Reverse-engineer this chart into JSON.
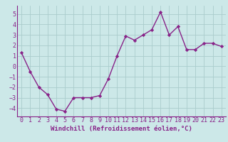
{
  "x": [
    0,
    1,
    2,
    3,
    4,
    5,
    6,
    7,
    8,
    9,
    10,
    11,
    12,
    13,
    14,
    15,
    16,
    17,
    18,
    19,
    20,
    21,
    22,
    23
  ],
  "y": [
    1.3,
    -0.5,
    -2.0,
    -2.7,
    -4.1,
    -4.3,
    -3.0,
    -3.0,
    -3.0,
    -2.8,
    -1.2,
    1.0,
    2.9,
    2.5,
    3.0,
    3.5,
    5.2,
    3.0,
    3.8,
    1.6,
    1.6,
    2.2,
    2.2,
    1.9
  ],
  "line_color": "#882288",
  "marker": "D",
  "marker_size": 2.2,
  "line_width": 1.0,
  "bg_color": "#cce8e8",
  "grid_color": "#aacccc",
  "xlabel": "Windchill (Refroidissement éolien,°C)",
  "xlabel_fontsize": 6.5,
  "tick_fontsize": 6.0,
  "ylim": [
    -4.8,
    5.8
  ],
  "xlim": [
    -0.5,
    23.5
  ],
  "yticks": [
    -4,
    -3,
    -2,
    -1,
    0,
    1,
    2,
    3,
    4,
    5
  ],
  "xticks": [
    0,
    1,
    2,
    3,
    4,
    5,
    6,
    7,
    8,
    9,
    10,
    11,
    12,
    13,
    14,
    15,
    16,
    17,
    18,
    19,
    20,
    21,
    22,
    23
  ]
}
